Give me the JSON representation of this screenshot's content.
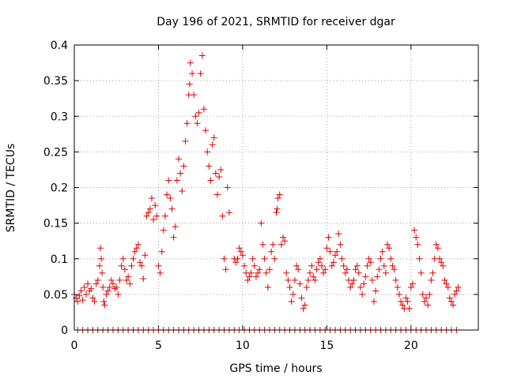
{
  "chart_data": {
    "type": "scatter",
    "title": "Day 196 of 2021, SRMTID for receiver dgar",
    "xlabel": "GPS time / hours",
    "ylabel": "SRMTID / TECUs",
    "xlim": [
      0,
      24
    ],
    "ylim": [
      0,
      0.4
    ],
    "x_ticks": [
      0,
      5,
      10,
      15,
      20
    ],
    "x_tick_labels": [
      "0",
      "5",
      "10",
      "15",
      "20"
    ],
    "y_ticks": [
      0,
      0.05,
      0.1,
      0.15,
      0.2,
      0.25,
      0.3,
      0.35,
      0.4
    ],
    "y_tick_labels": [
      "0",
      "0.05",
      "0.1",
      "0.15",
      "0.2",
      "0.25",
      "0.3",
      "0.35",
      "0.4"
    ],
    "grid": true,
    "marker": "plus",
    "color": "#e00000",
    "series": [
      {
        "name": "SRMTID",
        "points": [
          [
            0.0,
            0.05
          ],
          [
            0.1,
            0.045
          ],
          [
            0.2,
            0.04
          ],
          [
            0.3,
            0.048
          ],
          [
            0.4,
            0.055
          ],
          [
            0.5,
            0.042
          ],
          [
            0.6,
            0.06
          ],
          [
            0.7,
            0.05
          ],
          [
            0.8,
            0.065
          ],
          [
            0.9,
            0.055
          ],
          [
            1.0,
            0.058
          ],
          [
            1.1,
            0.045
          ],
          [
            1.2,
            0.04
          ],
          [
            1.3,
            0.065
          ],
          [
            1.4,
            0.07
          ],
          [
            1.5,
            0.09
          ],
          [
            1.55,
            0.115
          ],
          [
            1.6,
            0.1
          ],
          [
            1.65,
            0.08
          ],
          [
            1.7,
            0.06
          ],
          [
            1.75,
            0.04
          ],
          [
            1.8,
            0.035
          ],
          [
            1.9,
            0.05
          ],
          [
            2.0,
            0.055
          ],
          [
            2.1,
            0.06
          ],
          [
            2.2,
            0.07
          ],
          [
            2.3,
            0.065
          ],
          [
            2.4,
            0.058
          ],
          [
            2.5,
            0.06
          ],
          [
            2.6,
            0.05
          ],
          [
            2.7,
            0.07
          ],
          [
            2.8,
            0.09
          ],
          [
            2.9,
            0.1
          ],
          [
            3.0,
            0.085
          ],
          [
            3.1,
            0.07
          ],
          [
            3.2,
            0.075
          ],
          [
            3.3,
            0.065
          ],
          [
            3.4,
            0.09
          ],
          [
            3.5,
            0.1
          ],
          [
            3.6,
            0.11
          ],
          [
            3.7,
            0.115
          ],
          [
            3.8,
            0.12
          ],
          [
            3.9,
            0.095
          ],
          [
            4.0,
            0.09
          ],
          [
            4.1,
            0.072
          ],
          [
            4.2,
            0.105
          ],
          [
            4.3,
            0.16
          ],
          [
            4.4,
            0.165
          ],
          [
            4.5,
            0.17
          ],
          [
            4.6,
            0.185
          ],
          [
            4.7,
            0.155
          ],
          [
            4.8,
            0.175
          ],
          [
            4.9,
            0.16
          ],
          [
            5.0,
            0.09
          ],
          [
            5.1,
            0.08
          ],
          [
            5.2,
            0.11
          ],
          [
            5.3,
            0.14
          ],
          [
            5.4,
            0.16
          ],
          [
            5.5,
            0.19
          ],
          [
            5.6,
            0.21
          ],
          [
            5.7,
            0.185
          ],
          [
            5.8,
            0.17
          ],
          [
            5.9,
            0.13
          ],
          [
            6.0,
            0.145
          ],
          [
            6.1,
            0.21
          ],
          [
            6.2,
            0.24
          ],
          [
            6.3,
            0.22
          ],
          [
            6.4,
            0.195
          ],
          [
            6.5,
            0.23
          ],
          [
            6.6,
            0.265
          ],
          [
            6.7,
            0.29
          ],
          [
            6.8,
            0.33
          ],
          [
            6.85,
            0.345
          ],
          [
            6.9,
            0.375
          ],
          [
            7.0,
            0.36
          ],
          [
            7.1,
            0.33
          ],
          [
            7.2,
            0.3
          ],
          [
            7.3,
            0.29
          ],
          [
            7.4,
            0.305
          ],
          [
            7.5,
            0.36
          ],
          [
            7.6,
            0.385
          ],
          [
            7.7,
            0.31
          ],
          [
            7.8,
            0.28
          ],
          [
            7.9,
            0.25
          ],
          [
            8.0,
            0.23
          ],
          [
            8.1,
            0.21
          ],
          [
            8.2,
            0.26
          ],
          [
            8.3,
            0.27
          ],
          [
            8.4,
            0.22
          ],
          [
            8.5,
            0.19
          ],
          [
            8.6,
            0.215
          ],
          [
            8.7,
            0.225
          ],
          [
            8.8,
            0.16
          ],
          [
            8.9,
            0.1
          ],
          [
            9.0,
            0.085
          ],
          [
            9.1,
            0.2
          ],
          [
            9.2,
            0.165
          ],
          [
            9.5,
            0.1
          ],
          [
            9.6,
            0.095
          ],
          [
            9.7,
            0.1
          ],
          [
            9.8,
            0.115
          ],
          [
            9.9,
            0.11
          ],
          [
            10.0,
            0.105
          ],
          [
            10.1,
            0.09
          ],
          [
            10.2,
            0.08
          ],
          [
            10.3,
            0.07
          ],
          [
            10.4,
            0.075
          ],
          [
            10.5,
            0.08
          ],
          [
            10.6,
            0.1
          ],
          [
            10.7,
            0.09
          ],
          [
            10.8,
            0.075
          ],
          [
            10.9,
            0.08
          ],
          [
            11.0,
            0.085
          ],
          [
            11.1,
            0.15
          ],
          [
            11.2,
            0.12
          ],
          [
            11.3,
            0.1
          ],
          [
            11.4,
            0.08
          ],
          [
            11.5,
            0.06
          ],
          [
            11.6,
            0.085
          ],
          [
            11.7,
            0.11
          ],
          [
            11.8,
            0.12
          ],
          [
            11.9,
            0.1
          ],
          [
            12.0,
            0.165
          ],
          [
            12.05,
            0.17
          ],
          [
            12.1,
            0.185
          ],
          [
            12.2,
            0.19
          ],
          [
            12.3,
            0.12
          ],
          [
            12.4,
            0.13
          ],
          [
            12.5,
            0.125
          ],
          [
            12.6,
            0.08
          ],
          [
            12.7,
            0.07
          ],
          [
            12.8,
            0.06
          ],
          [
            12.9,
            0.04
          ],
          [
            13.0,
            0.05
          ],
          [
            13.1,
            0.07
          ],
          [
            13.2,
            0.09
          ],
          [
            13.3,
            0.085
          ],
          [
            13.4,
            0.065
          ],
          [
            13.5,
            0.045
          ],
          [
            13.6,
            0.03
          ],
          [
            13.7,
            0.035
          ],
          [
            13.8,
            0.06
          ],
          [
            13.9,
            0.07
          ],
          [
            14.0,
            0.08
          ],
          [
            14.1,
            0.09
          ],
          [
            14.2,
            0.075
          ],
          [
            14.3,
            0.07
          ],
          [
            14.4,
            0.085
          ],
          [
            14.5,
            0.095
          ],
          [
            14.6,
            0.1
          ],
          [
            14.7,
            0.09
          ],
          [
            14.8,
            0.08
          ],
          [
            14.9,
            0.085
          ],
          [
            15.0,
            0.115
          ],
          [
            15.1,
            0.13
          ],
          [
            15.2,
            0.11
          ],
          [
            15.3,
            0.09
          ],
          [
            15.4,
            0.095
          ],
          [
            15.5,
            0.105
          ],
          [
            15.6,
            0.11
          ],
          [
            15.7,
            0.135
          ],
          [
            15.8,
            0.12
          ],
          [
            15.9,
            0.1
          ],
          [
            16.0,
            0.09
          ],
          [
            16.1,
            0.08
          ],
          [
            16.2,
            0.085
          ],
          [
            16.3,
            0.07
          ],
          [
            16.4,
            0.06
          ],
          [
            16.5,
            0.065
          ],
          [
            16.6,
            0.07
          ],
          [
            16.7,
            0.085
          ],
          [
            16.8,
            0.09
          ],
          [
            16.9,
            0.08
          ],
          [
            17.0,
            0.06
          ],
          [
            17.1,
            0.05
          ],
          [
            17.2,
            0.065
          ],
          [
            17.3,
            0.075
          ],
          [
            17.4,
            0.09
          ],
          [
            17.5,
            0.1
          ],
          [
            17.6,
            0.095
          ],
          [
            17.7,
            0.07
          ],
          [
            17.8,
            0.04
          ],
          [
            17.9,
            0.055
          ],
          [
            18.0,
            0.075
          ],
          [
            18.1,
            0.085
          ],
          [
            18.2,
            0.1
          ],
          [
            18.3,
            0.11
          ],
          [
            18.4,
            0.09
          ],
          [
            18.5,
            0.08
          ],
          [
            18.6,
            0.12
          ],
          [
            18.7,
            0.115
          ],
          [
            18.8,
            0.1
          ],
          [
            18.9,
            0.09
          ],
          [
            19.0,
            0.085
          ],
          [
            19.1,
            0.07
          ],
          [
            19.2,
            0.06
          ],
          [
            19.3,
            0.05
          ],
          [
            19.4,
            0.04
          ],
          [
            19.5,
            0.035
          ],
          [
            19.6,
            0.03
          ],
          [
            19.7,
            0.045
          ],
          [
            19.8,
            0.04
          ],
          [
            19.9,
            0.03
          ],
          [
            20.0,
            0.06
          ],
          [
            20.1,
            0.065
          ],
          [
            20.2,
            0.14
          ],
          [
            20.3,
            0.13
          ],
          [
            20.4,
            0.12
          ],
          [
            20.5,
            0.1
          ],
          [
            20.6,
            0.08
          ],
          [
            20.7,
            0.05
          ],
          [
            20.8,
            0.04
          ],
          [
            20.9,
            0.045
          ],
          [
            21.0,
            0.035
          ],
          [
            21.1,
            0.05
          ],
          [
            21.2,
            0.07
          ],
          [
            21.3,
            0.08
          ],
          [
            21.4,
            0.1
          ],
          [
            21.5,
            0.12
          ],
          [
            21.6,
            0.115
          ],
          [
            21.7,
            0.1
          ],
          [
            21.8,
            0.095
          ],
          [
            21.9,
            0.09
          ],
          [
            22.0,
            0.07
          ],
          [
            22.1,
            0.065
          ],
          [
            22.2,
            0.06
          ],
          [
            22.3,
            0.045
          ],
          [
            22.4,
            0.04
          ],
          [
            22.5,
            0.035
          ],
          [
            22.6,
            0.05
          ],
          [
            22.7,
            0.055
          ],
          [
            22.8,
            0.06
          ],
          [
            0.2,
            0
          ],
          [
            0.5,
            0
          ],
          [
            0.8,
            0
          ],
          [
            1.1,
            0
          ],
          [
            1.4,
            0
          ],
          [
            1.7,
            0
          ],
          [
            2.0,
            0
          ],
          [
            2.3,
            0
          ],
          [
            2.6,
            0
          ],
          [
            2.9,
            0
          ],
          [
            3.2,
            0
          ],
          [
            3.5,
            0
          ],
          [
            3.8,
            0
          ],
          [
            4.1,
            0
          ],
          [
            4.4,
            0
          ],
          [
            4.7,
            0
          ],
          [
            5.0,
            0
          ],
          [
            5.3,
            0
          ],
          [
            5.6,
            0
          ],
          [
            5.9,
            0
          ],
          [
            6.2,
            0
          ],
          [
            6.5,
            0
          ],
          [
            6.8,
            0
          ],
          [
            7.1,
            0
          ],
          [
            7.4,
            0
          ],
          [
            7.7,
            0
          ],
          [
            8.0,
            0
          ],
          [
            8.3,
            0
          ],
          [
            8.6,
            0
          ],
          [
            8.9,
            0
          ],
          [
            9.2,
            0
          ],
          [
            9.5,
            0
          ],
          [
            9.8,
            0
          ],
          [
            10.1,
            0
          ],
          [
            10.4,
            0
          ],
          [
            10.7,
            0
          ],
          [
            11.0,
            0
          ],
          [
            11.3,
            0
          ],
          [
            11.6,
            0
          ],
          [
            11.9,
            0
          ],
          [
            12.2,
            0
          ],
          [
            12.5,
            0
          ],
          [
            12.8,
            0
          ],
          [
            13.1,
            0
          ],
          [
            13.4,
            0
          ],
          [
            13.7,
            0
          ],
          [
            14.0,
            0
          ],
          [
            14.3,
            0
          ],
          [
            14.6,
            0
          ],
          [
            14.9,
            0
          ],
          [
            15.2,
            0
          ],
          [
            15.5,
            0
          ],
          [
            15.8,
            0
          ],
          [
            16.1,
            0
          ],
          [
            16.4,
            0
          ],
          [
            16.7,
            0
          ],
          [
            17.0,
            0
          ],
          [
            17.3,
            0
          ],
          [
            17.6,
            0
          ],
          [
            17.9,
            0
          ],
          [
            18.2,
            0
          ],
          [
            18.5,
            0
          ],
          [
            18.8,
            0
          ],
          [
            19.1,
            0
          ],
          [
            19.4,
            0
          ],
          [
            19.7,
            0
          ],
          [
            20.0,
            0
          ],
          [
            20.3,
            0
          ],
          [
            20.6,
            0
          ],
          [
            20.9,
            0
          ],
          [
            21.2,
            0
          ],
          [
            21.5,
            0
          ],
          [
            21.8,
            0
          ],
          [
            22.1,
            0
          ],
          [
            22.4,
            0
          ],
          [
            22.7,
            0
          ]
        ]
      }
    ]
  }
}
